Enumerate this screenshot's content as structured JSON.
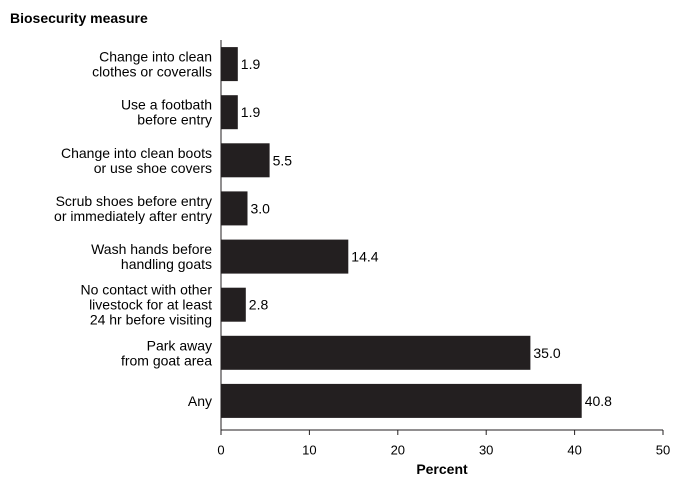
{
  "chart_data": {
    "type": "bar",
    "orientation": "horizontal",
    "category_axis_title": "Biosecurity measure",
    "xlabel": "Percent",
    "xlim": [
      0,
      50
    ],
    "xticks": [
      0,
      10,
      20,
      30,
      40,
      50
    ],
    "xtick_labels": [
      "0",
      "10",
      "20",
      "30",
      "40",
      "50"
    ],
    "grid": false,
    "bar_color": "#231f20",
    "categories": [
      {
        "lines": [
          "Change into clean",
          "clothes or coveralls"
        ],
        "value": 1.9,
        "value_label": "1.9"
      },
      {
        "lines": [
          "Use a footbath",
          "before entry"
        ],
        "value": 1.9,
        "value_label": "1.9"
      },
      {
        "lines": [
          "Change into clean boots",
          "or use shoe covers"
        ],
        "value": 5.5,
        "value_label": "5.5"
      },
      {
        "lines": [
          "Scrub shoes before entry",
          "or immediately after entry"
        ],
        "value": 3.0,
        "value_label": "3.0"
      },
      {
        "lines": [
          "Wash hands before",
          "handling goats"
        ],
        "value": 14.4,
        "value_label": "14.4"
      },
      {
        "lines": [
          "No contact with other",
          "livestock for at least",
          "24 hr before visiting"
        ],
        "value": 2.8,
        "value_label": "2.8"
      },
      {
        "lines": [
          "Park away",
          "from goat area"
        ],
        "value": 35.0,
        "value_label": "35.0"
      },
      {
        "lines": [
          "Any"
        ],
        "value": 40.8,
        "value_label": "40.8"
      }
    ]
  }
}
